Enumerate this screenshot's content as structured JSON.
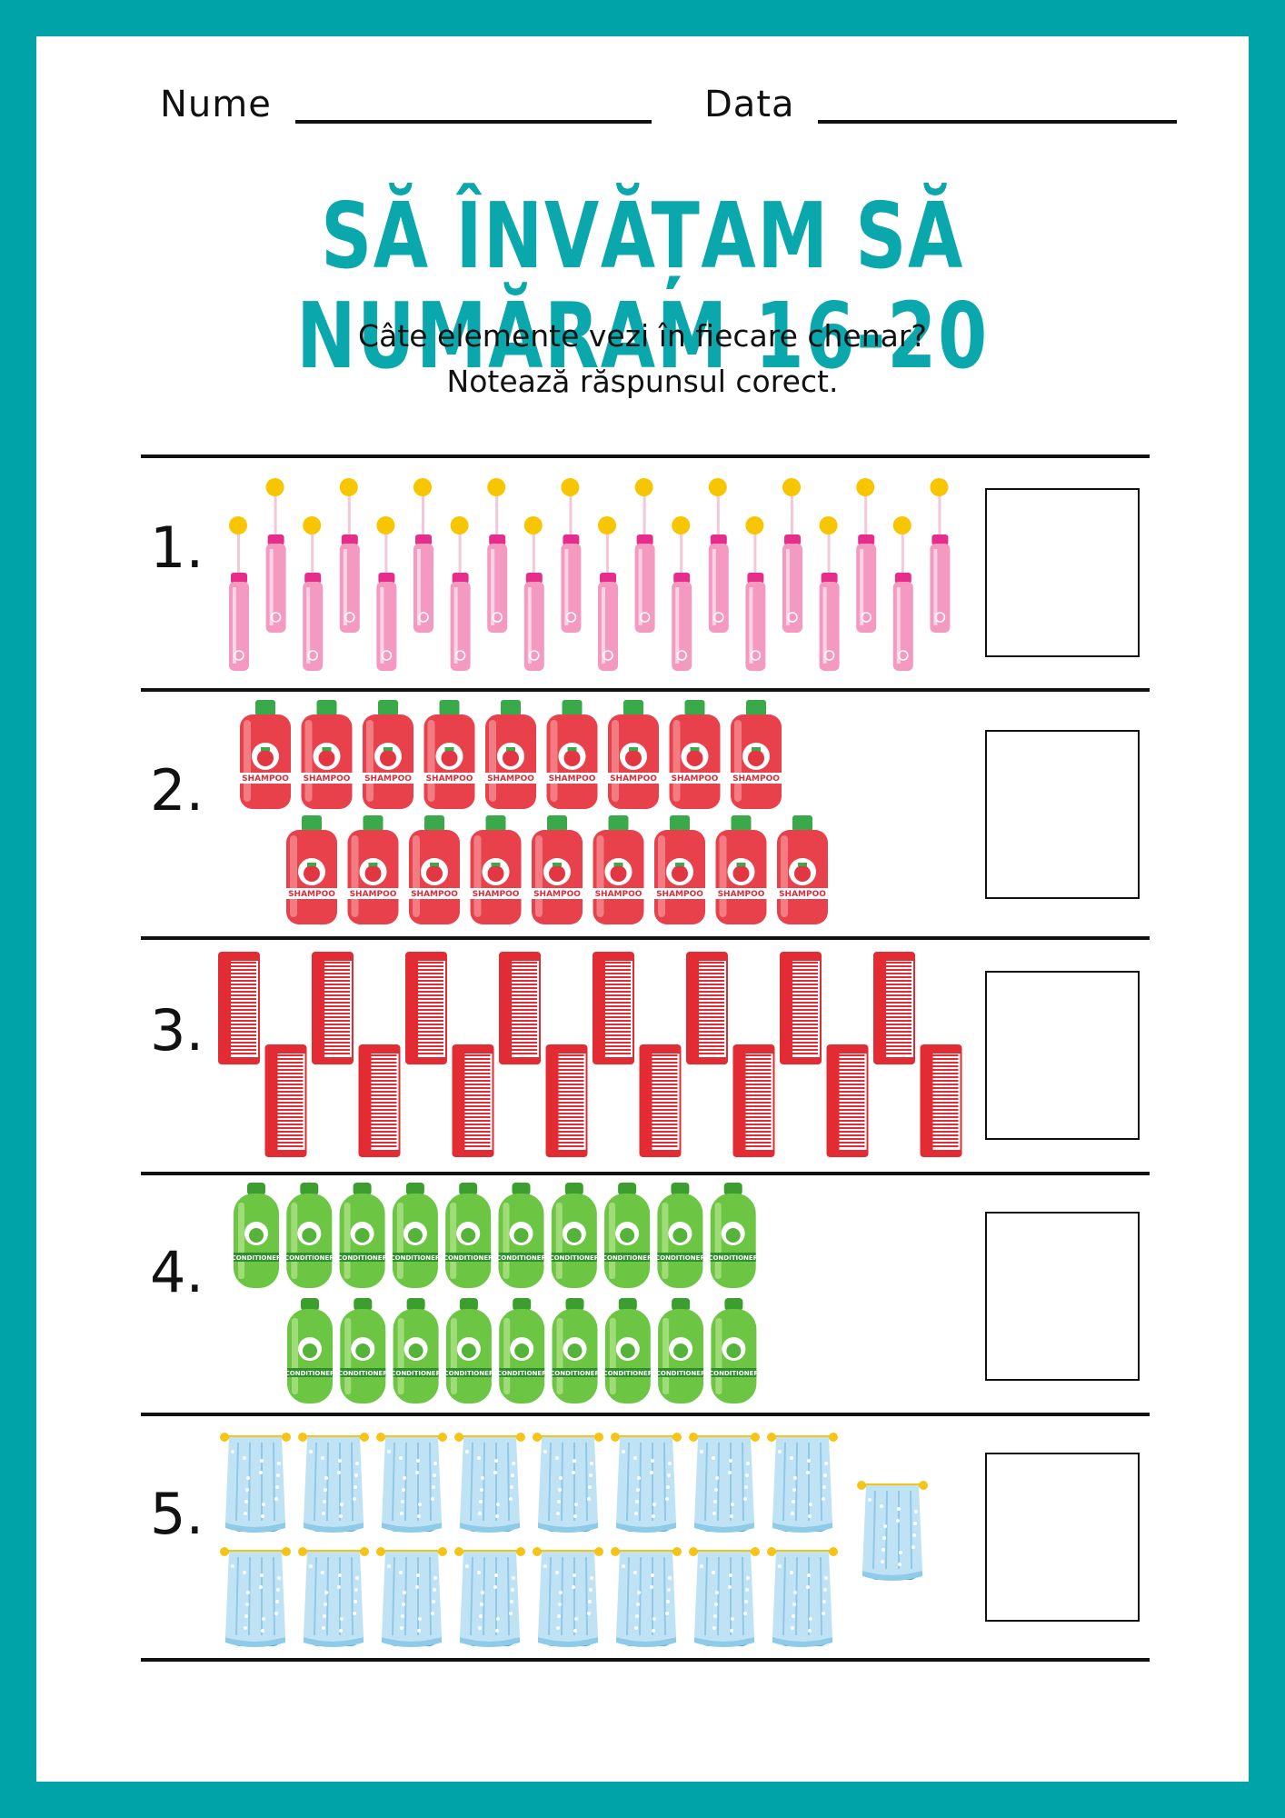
{
  "header": {
    "name_label": "Nume",
    "date_label": "Data"
  },
  "title": "SĂ ÎNVĂȚAM SĂ NUMĂRAM 16-20",
  "instructions": {
    "line1": "Câte elemente vezi în fiecare chenar?",
    "line2": "Notează răspunsul corect."
  },
  "colors": {
    "border": "#00a3a8",
    "title": "#0aa7ac",
    "toothbrush": "#f49ac1",
    "shampoo": "#e8414b",
    "comb": "#e32b33",
    "conditioner": "#6cc644",
    "towel": "#bfe3f5"
  },
  "exercises": [
    {
      "number": "1.",
      "item": "toothbrush-icon",
      "count": 20
    },
    {
      "number": "2.",
      "item": "shampoo-icon",
      "count": 18,
      "bottle_label": "SHAMPOO"
    },
    {
      "number": "3.",
      "item": "comb-icon",
      "count": 16
    },
    {
      "number": "4.",
      "item": "conditioner-icon",
      "count": 19,
      "bottle_label": "CONDITIONER"
    },
    {
      "number": "5.",
      "item": "towel-icon",
      "count": 17
    }
  ]
}
